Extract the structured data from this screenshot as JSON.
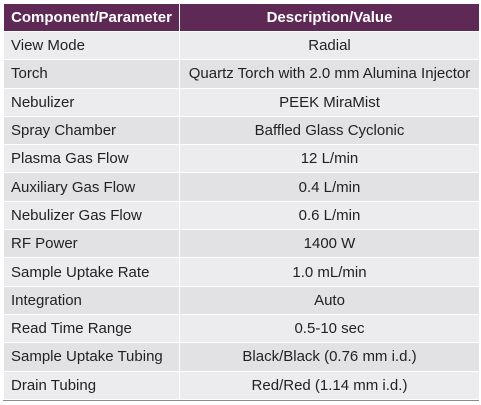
{
  "table": {
    "headers": [
      "Component/Parameter",
      "Description/Value"
    ],
    "rows": [
      {
        "parameter": "View Mode",
        "value": "Radial"
      },
      {
        "parameter": "Torch",
        "value": "Quartz Torch with 2.0 mm Alumina Injector"
      },
      {
        "parameter": "Nebulizer",
        "value": "PEEK MiraMist"
      },
      {
        "parameter": "Spray Chamber",
        "value": "Baffled Glass Cyclonic"
      },
      {
        "parameter": "Plasma Gas Flow",
        "value": "12 L/min"
      },
      {
        "parameter": "Auxiliary Gas Flow",
        "value": "0.4 L/min"
      },
      {
        "parameter": "Nebulizer Gas Flow",
        "value": "0.6 L/min"
      },
      {
        "parameter": "RF Power",
        "value": "1400 W"
      },
      {
        "parameter": "Sample Uptake Rate",
        "value": "1.0 mL/min"
      },
      {
        "parameter": "Integration",
        "value": "Auto"
      },
      {
        "parameter": "Read Time Range",
        "value": "0.5-10 sec"
      },
      {
        "parameter": "Sample Uptake Tubing",
        "value": "Black/Black (0.76 mm i.d.)"
      },
      {
        "parameter": "Drain Tubing",
        "value": "Red/Red (1.14 mm i.d.)"
      }
    ]
  },
  "colors": {
    "header_bg": "#5e2a55",
    "header_text": "#ffffff",
    "row_bg_light": "#ececee",
    "row_bg_dark": "#e2e2e5"
  }
}
